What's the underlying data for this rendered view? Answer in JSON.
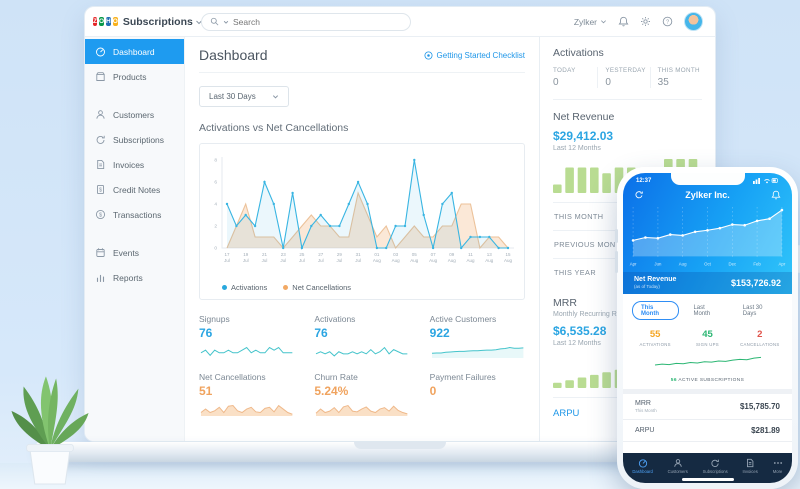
{
  "colors": {
    "accent_blue": "#1e9bf0",
    "link_blue": "#2097e8",
    "value_blue": "#2ba5e2",
    "value_orange": "#f0a35e",
    "bar_green": "#b9dc92",
    "spark_teal": "#45c4cb",
    "phone_nav_bg": "#152a42",
    "stat_orange": "#f5a623",
    "stat_green": "#2bb673",
    "stat_red": "#e0534a"
  },
  "topbar": {
    "logo_letters": [
      "Z",
      "O",
      "H",
      "O"
    ],
    "product_name": "Subscriptions",
    "search_placeholder": "Search",
    "org_name": "Zylker"
  },
  "sidebar": {
    "items": [
      {
        "label": "Dashboard"
      },
      {
        "label": "Products"
      },
      {
        "label": "Customers"
      },
      {
        "label": "Subscriptions"
      },
      {
        "label": "Invoices"
      },
      {
        "label": "Credit Notes"
      },
      {
        "label": "Transactions"
      },
      {
        "label": "Events"
      },
      {
        "label": "Reports"
      }
    ]
  },
  "main": {
    "page_title": "Dashboard",
    "checklist_label": "Getting Started Checklist",
    "date_filter": "Last 30 Days",
    "chart_title": "Activations vs Net Cancellations",
    "legend": [
      {
        "label": "Activations"
      },
      {
        "label": "Net Cancellations"
      }
    ],
    "stats": [
      {
        "label": "Signups",
        "value": "76"
      },
      {
        "label": "Activations",
        "value": "76"
      },
      {
        "label": "Active Customers",
        "value": "922"
      },
      {
        "label": "Net Cancellations",
        "value": "51"
      },
      {
        "label": "Churn Rate",
        "value": "5.24%"
      },
      {
        "label": "Payment Failures",
        "value": "0"
      }
    ]
  },
  "right_panel": {
    "activations": {
      "title": "Activations",
      "cols": [
        {
          "label": "TODAY",
          "value": "0"
        },
        {
          "label": "YESTERDAY",
          "value": "0"
        },
        {
          "label": "THIS MONTH",
          "value": "35"
        }
      ]
    },
    "net_revenue": {
      "title": "Net Revenue",
      "value": "$29,412.03",
      "period": "Last 12 Months",
      "rows": [
        {
          "label": "THIS MONTH"
        },
        {
          "label": "PREVIOUS MONTH"
        },
        {
          "label": "THIS YEAR"
        }
      ]
    },
    "mrr": {
      "title": "MRR",
      "subtitle": "Monthly Recurring Revenue",
      "value": "$6,535.28",
      "period": "Last 12 Months"
    },
    "arpu_label": "ARPU"
  },
  "phone": {
    "status_time": "12:37",
    "header_title": "Zylker Inc.",
    "net_revenue_label": "Net Revenue",
    "net_revenue_sub": "(as of Today)",
    "net_revenue_value": "$153,726.92",
    "tabs": [
      {
        "label": "This Month"
      },
      {
        "label": "Last Month"
      },
      {
        "label": "Last 30 Days"
      }
    ],
    "stats": [
      {
        "value": "55",
        "label": "ACTIVATIONS"
      },
      {
        "value": "45",
        "label": "SIGN UPS"
      },
      {
        "value": "2",
        "label": "CANCELLATIONS"
      }
    ],
    "active_subscriptions": {
      "value": "56",
      "label": "ACTIVE SUBSCRIPTIONS"
    },
    "rows": [
      {
        "label": "MRR",
        "sub": "This Month",
        "value": "$15,785.70"
      },
      {
        "label": "ARPU",
        "value": "$281.89"
      }
    ],
    "nav": [
      {
        "label": "Dashboard"
      },
      {
        "label": "Customers"
      },
      {
        "label": "Subscriptions"
      },
      {
        "label": "Invoices"
      },
      {
        "label": "More"
      }
    ]
  },
  "chart_data": {
    "main_chart": {
      "type": "line",
      "title": "Activations vs Net Cancellations",
      "ylim": [
        0,
        8
      ],
      "yticks": [
        0,
        2,
        4,
        6,
        8
      ],
      "x_ticks": [
        [
          "17",
          "Jul"
        ],
        [
          "19",
          "Jul"
        ],
        [
          "21",
          "Jul"
        ],
        [
          "23",
          "Jul"
        ],
        [
          "25",
          "Jul"
        ],
        [
          "27",
          "Jul"
        ],
        [
          "29",
          "Jul"
        ],
        [
          "31",
          "Jul"
        ],
        [
          "01",
          "Aug"
        ],
        [
          "03",
          "Aug"
        ],
        [
          "05",
          "Aug"
        ],
        [
          "07",
          "Aug"
        ],
        [
          "09",
          "Aug"
        ],
        [
          "11",
          "Aug"
        ],
        [
          "13",
          "Aug"
        ],
        [
          "15",
          "Aug"
        ]
      ],
      "legend_position": "bottom",
      "series": [
        {
          "name": "Activations",
          "color": "#39b5e2",
          "fill": "rgba(57,181,226,0.10)",
          "values": [
            4,
            2,
            3,
            2,
            6,
            4,
            0,
            5,
            0,
            2,
            3,
            2,
            2,
            4,
            6,
            4,
            0,
            0,
            2,
            2,
            8,
            3,
            0,
            4,
            5,
            0,
            1,
            1,
            1,
            0,
            0
          ]
        },
        {
          "name": "Net Cancellations",
          "color": "#ecc29a",
          "fill": "rgba(246,205,166,0.45)",
          "values": [
            0,
            2,
            4,
            1,
            1,
            1,
            0,
            1,
            2,
            3,
            2,
            2,
            1,
            1,
            5,
            3,
            1,
            2,
            0,
            1,
            2,
            1,
            1,
            2,
            2,
            4,
            4,
            0,
            1,
            1,
            0
          ]
        }
      ]
    },
    "net_revenue_bars": {
      "type": "bar",
      "color": "#b9dc92",
      "values": [
        1.5,
        4.5,
        4.5,
        4.5,
        3.5,
        4.5,
        4.5,
        4.5,
        3,
        6,
        6,
        6
      ]
    },
    "mrr_bars": {
      "type": "bar",
      "color": "#b9dc92",
      "values": [
        1,
        1.5,
        2,
        2.5,
        3,
        3.5,
        4,
        4.5,
        5,
        5.5,
        6,
        6.5
      ]
    },
    "sparklines": {
      "signups": {
        "type": "line",
        "color": "#45c4cb",
        "values": [
          2,
          3,
          1,
          3,
          2,
          2,
          3,
          2,
          2,
          3,
          4,
          2,
          3,
          2,
          2,
          4,
          3,
          4,
          2,
          2,
          2
        ]
      },
      "activations": {
        "type": "line",
        "color": "#45c4cb",
        "values": [
          2,
          3,
          2,
          3,
          1,
          3,
          2,
          2,
          3,
          2,
          3,
          2,
          4,
          2,
          3,
          5,
          2,
          4,
          3,
          2,
          2
        ]
      },
      "active_customers": {
        "type": "area",
        "color": "#45c4cb",
        "fill": "rgba(69,196,203,0.12)",
        "values": [
          1.5,
          1.6,
          1.6,
          1.8,
          1.9,
          2,
          2.1,
          2.1,
          2.2,
          2.3,
          2.3,
          2.4,
          2.5,
          2.5,
          2.6,
          2.9,
          3,
          3.3,
          3.1,
          3.1,
          3.2
        ]
      },
      "net_cancellations": {
        "type": "area",
        "color": "#efb98b",
        "fill": "rgba(246,198,152,0.55)",
        "values": [
          1,
          2,
          1,
          1.5,
          2.5,
          1,
          2.8,
          3,
          1.5,
          1,
          2,
          2.5,
          1.2,
          1,
          2.2,
          2.5,
          1.2,
          3,
          2,
          1,
          0.5
        ]
      },
      "churn_rate": {
        "type": "area",
        "color": "#efb98b",
        "fill": "rgba(246,198,152,0.55)",
        "values": [
          0.8,
          2,
          1,
          1.4,
          2.4,
          1,
          2.6,
          3,
          1.4,
          1.2,
          2,
          2.6,
          1.4,
          1,
          2,
          2.4,
          1.4,
          2.8,
          1.6,
          1,
          0.6
        ]
      }
    },
    "phone_net_revenue_chart": {
      "type": "area",
      "color": "#ffffff",
      "fill": "rgba(255,255,255,0.28)",
      "x_ticks": [
        "Apr",
        "Jun",
        "Aug",
        "Oct",
        "Dec",
        "Feb",
        "Apr"
      ],
      "values": [
        2.2,
        2.6,
        2.5,
        3,
        2.9,
        3.4,
        3.6,
        3.9,
        4.4,
        4.3,
        4.9,
        5.2,
        6.4
      ]
    },
    "phone_subscriptions_spark": {
      "type": "line",
      "color": "#2bb673",
      "values": [
        1,
        1.2,
        1.1,
        1.4,
        1.3,
        1.6,
        1.5,
        1.8,
        1.7,
        2,
        1.9,
        2.2,
        2.4,
        2.3,
        2.7,
        2.9
      ]
    }
  }
}
